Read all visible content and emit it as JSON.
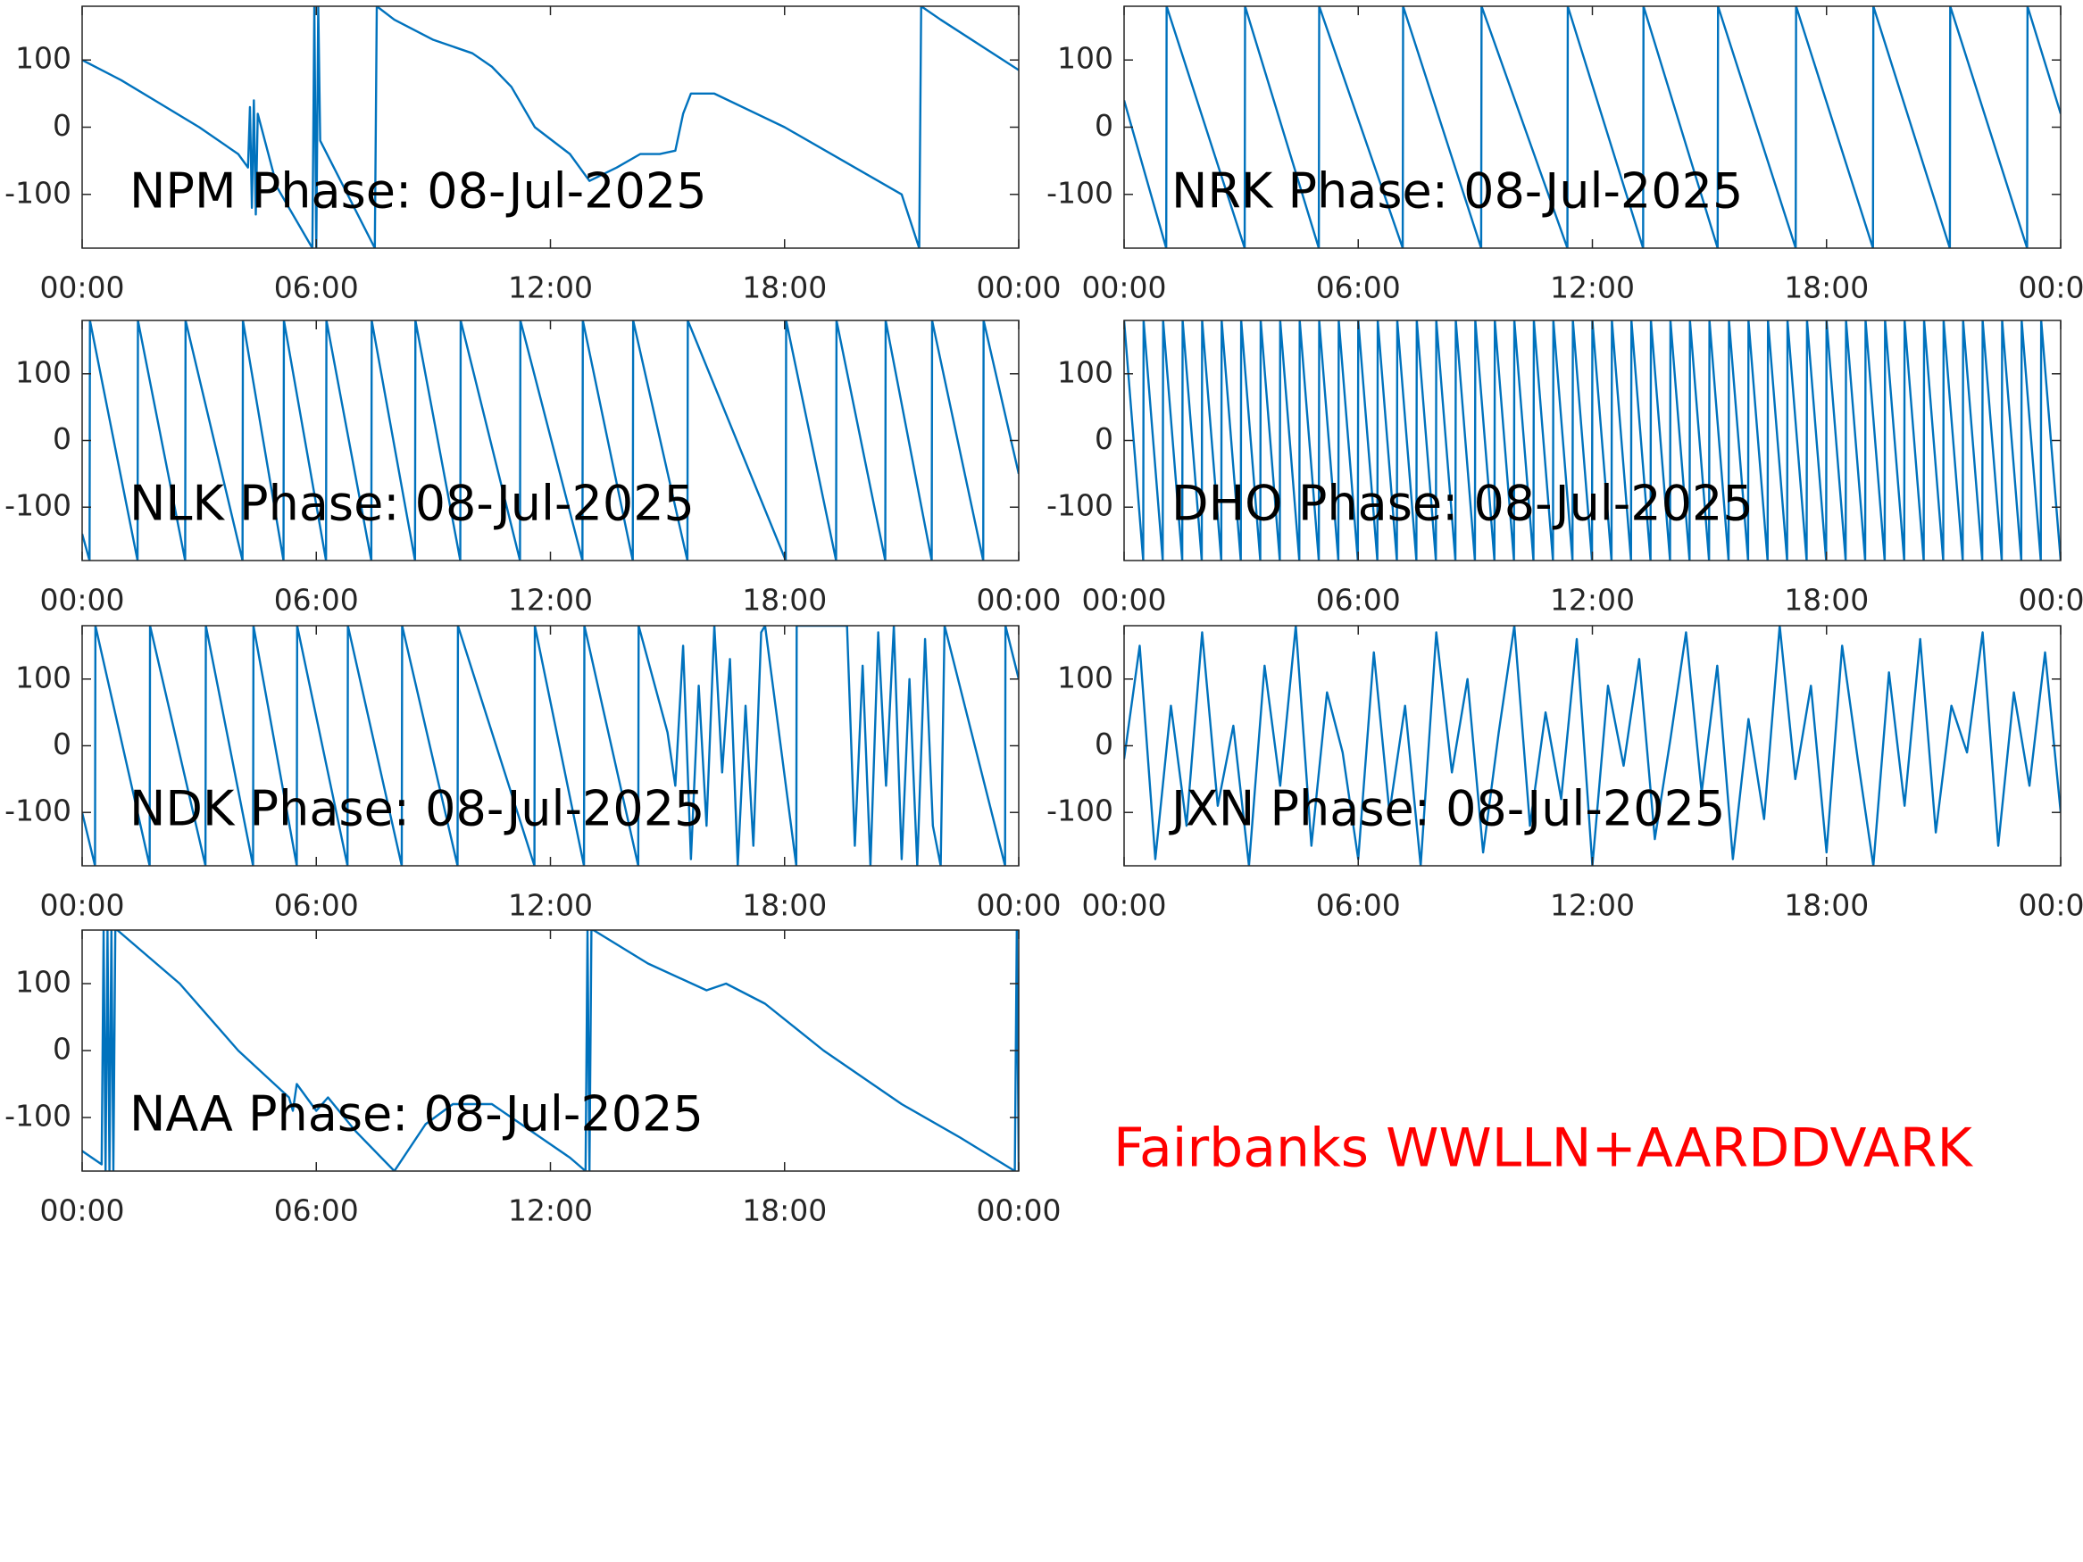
{
  "chart_data": [
    {
      "type": "line",
      "title": "NPM Phase: 08-Jul-2025",
      "x": [
        0,
        1,
        2,
        3,
        4,
        4.25,
        4.3,
        4.35,
        4.4,
        4.45,
        4.5,
        5,
        5.9,
        5.95,
        6.0,
        6.05,
        6.1,
        7.5,
        7.55,
        8,
        9,
        10,
        10.5,
        11,
        11.6,
        12.5,
        13,
        13.7,
        14.3,
        14.8,
        15.2,
        15.4,
        15.6,
        16.2,
        18,
        21,
        21.45,
        21.5,
        22,
        24
      ],
      "series": [
        {
          "color": "#0072bd",
          "values": [
            100,
            70,
            35,
            0,
            -40,
            -60,
            30,
            -120,
            40,
            -130,
            20,
            -90,
            -180,
            180,
            -180,
            180,
            -20,
            -180,
            180,
            160,
            130,
            110,
            90,
            60,
            0,
            -40,
            -80,
            -60,
            -40,
            -40,
            -35,
            20,
            50,
            50,
            0,
            -100,
            -180,
            180,
            160,
            85
          ]
        }
      ],
      "xlim": [
        0,
        24
      ],
      "ylim": [
        -180,
        180
      ],
      "xticks": [
        {
          "value": 0,
          "label": "00:00"
        },
        {
          "value": 6,
          "label": "06:00"
        },
        {
          "value": 12,
          "label": "12:00"
        },
        {
          "value": 18,
          "label": "18:00"
        },
        {
          "value": 24,
          "label": "00:00"
        }
      ],
      "yticks": [
        -100,
        0,
        100
      ]
    },
    {
      "type": "line",
      "title": "NRK Phase: 08-Jul-2025",
      "x": [
        0,
        1.08,
        1.09,
        3.09,
        3.1,
        4.99,
        5.0,
        7.14,
        7.15,
        9.15,
        9.16,
        11.36,
        11.37,
        13.3,
        13.31,
        15.21,
        15.22,
        17.21,
        17.22,
        19.19,
        19.2,
        21.16,
        21.17,
        23.14,
        23.15,
        24
      ],
      "series": [
        {
          "color": "#0072bd",
          "values": [
            40,
            -180,
            180,
            -180,
            180,
            -180,
            180,
            -180,
            180,
            -180,
            180,
            -180,
            180,
            -180,
            180,
            -180,
            180,
            -180,
            180,
            -180,
            180,
            -180,
            180,
            -180,
            180,
            20
          ]
        }
      ],
      "xlim": [
        0,
        24
      ],
      "ylim": [
        -180,
        180
      ],
      "xticks": [
        {
          "value": 0,
          "label": "00:00"
        },
        {
          "value": 6,
          "label": "06:00"
        },
        {
          "value": 12,
          "label": "12:00"
        },
        {
          "value": 18,
          "label": "18:00"
        },
        {
          "value": 24,
          "label": "00:00"
        }
      ],
      "yticks": [
        -100,
        0,
        100
      ]
    },
    {
      "type": "line",
      "title": "NLK Phase: 08-Jul-2025",
      "x": [
        0,
        0.19,
        0.2,
        1.42,
        1.43,
        2.64,
        2.65,
        4.11,
        4.12,
        5.16,
        5.17,
        6.25,
        6.26,
        7.41,
        7.42,
        8.53,
        8.54,
        9.69,
        9.7,
        11.22,
        11.23,
        12.82,
        12.83,
        14.11,
        14.12,
        15.51,
        15.52,
        18.03,
        18.04,
        19.32,
        19.33,
        20.58,
        20.59,
        21.77,
        21.78,
        23.09,
        23.1,
        24
      ],
      "series": [
        {
          "color": "#0072bd",
          "values": [
            -140,
            -180,
            180,
            -180,
            180,
            -180,
            180,
            -180,
            180,
            -180,
            180,
            -180,
            180,
            -180,
            180,
            -180,
            180,
            -180,
            180,
            -180,
            180,
            -180,
            180,
            -180,
            180,
            -180,
            180,
            -180,
            180,
            -180,
            180,
            -180,
            180,
            -180,
            180,
            -180,
            180,
            -50
          ]
        }
      ],
      "xlim": [
        0,
        24
      ],
      "ylim": [
        -180,
        180
      ],
      "xticks": [
        {
          "value": 0,
          "label": "00:00"
        },
        {
          "value": 6,
          "label": "06:00"
        },
        {
          "value": 12,
          "label": "12:00"
        },
        {
          "value": 18,
          "label": "18:00"
        },
        {
          "value": 24,
          "label": "00:00"
        }
      ],
      "yticks": [
        -100,
        0,
        100
      ]
    },
    {
      "type": "line",
      "title": "DHO Phase: 08-Jul-2025",
      "x": [
        0,
        0.49,
        0.5,
        0.99,
        1,
        1.49,
        1.5,
        1.99,
        2,
        2.49,
        2.5,
        2.99,
        3,
        3.49,
        3.5,
        3.99,
        4,
        4.49,
        4.5,
        4.99,
        5,
        5.49,
        5.5,
        5.99,
        6,
        6.49,
        6.5,
        6.99,
        7,
        7.49,
        7.5,
        7.99,
        8,
        8.49,
        8.5,
        8.99,
        9,
        9.49,
        9.5,
        9.99,
        10,
        10.49,
        10.5,
        10.99,
        11,
        11.49,
        11.5,
        11.99,
        12,
        12.49,
        12.5,
        12.99,
        13,
        13.49,
        13.5,
        13.99,
        14,
        14.49,
        14.5,
        14.99,
        15,
        15.49,
        15.5,
        15.99,
        16,
        16.49,
        16.5,
        16.99,
        17,
        17.49,
        17.5,
        17.99,
        18,
        18.49,
        18.5,
        18.99,
        19,
        19.49,
        19.5,
        19.99,
        20,
        20.49,
        20.5,
        20.99,
        21,
        21.49,
        21.5,
        21.99,
        22,
        22.49,
        22.5,
        22.99,
        23,
        23.49,
        23.5,
        24
      ],
      "series": [
        {
          "color": "#0072bd",
          "values": [
            180,
            -180,
            180,
            -180,
            180,
            -180,
            180,
            -180,
            180,
            -180,
            180,
            -180,
            180,
            -180,
            180,
            -180,
            180,
            -180,
            180,
            -180,
            180,
            -180,
            180,
            -180,
            180,
            -180,
            180,
            -180,
            180,
            -180,
            180,
            -180,
            180,
            -180,
            180,
            -180,
            180,
            -180,
            180,
            -180,
            180,
            -180,
            180,
            -180,
            180,
            -180,
            180,
            -180,
            180,
            -180,
            180,
            -180,
            180,
            -180,
            180,
            -180,
            180,
            -180,
            180,
            -180,
            180,
            -180,
            180,
            -180,
            180,
            -180,
            180,
            -180,
            180,
            -180,
            180,
            -180,
            180,
            -180,
            180,
            -180,
            180,
            -180,
            180,
            -180,
            180,
            -180,
            180,
            -180,
            180,
            -180,
            180,
            -180,
            180,
            -180,
            180,
            -180,
            180,
            -180,
            180,
            -180
          ]
        }
      ],
      "xlim": [
        0,
        24
      ],
      "ylim": [
        -180,
        180
      ],
      "xticks": [
        {
          "value": 0,
          "label": "00:00"
        },
        {
          "value": 6,
          "label": "06:00"
        },
        {
          "value": 12,
          "label": "12:00"
        },
        {
          "value": 18,
          "label": "18:00"
        },
        {
          "value": 24,
          "label": "00:00"
        }
      ],
      "yticks": [
        -100,
        0,
        100
      ]
    },
    {
      "type": "line",
      "title": "NDK Phase: 08-Jul-2025",
      "x": [
        0,
        0.33,
        0.34,
        1.73,
        1.74,
        3.16,
        3.17,
        4.38,
        4.39,
        5.5,
        5.51,
        6.8,
        6.81,
        8.19,
        8.2,
        9.62,
        9.63,
        11.59,
        11.6,
        12.86,
        12.87,
        14.25,
        14.26,
        15.0,
        15.2,
        15.4,
        15.6,
        15.8,
        16.0,
        16.2,
        16.4,
        16.6,
        16.8,
        17.0,
        17.2,
        17.4,
        17.5,
        18.3,
        18.31,
        19.6,
        19.8,
        20.0,
        20.2,
        20.4,
        20.6,
        20.8,
        21.0,
        21.2,
        21.4,
        21.6,
        21.8,
        22.0,
        22.1,
        23.65,
        23.66,
        24
      ],
      "series": [
        {
          "color": "#0072bd",
          "values": [
            -100,
            -180,
            180,
            -180,
            180,
            -180,
            180,
            -180,
            180,
            -180,
            180,
            -180,
            180,
            -180,
            180,
            -180,
            180,
            -180,
            180,
            -180,
            180,
            -180,
            180,
            20,
            -60,
            150,
            -170,
            90,
            -120,
            180,
            -40,
            130,
            -180,
            60,
            -150,
            170,
            180,
            -180,
            180,
            180,
            -150,
            120,
            -180,
            170,
            -60,
            180,
            -170,
            100,
            -180,
            160,
            -120,
            -180,
            180,
            -180,
            180,
            100
          ]
        }
      ],
      "xlim": [
        0,
        24
      ],
      "ylim": [
        -180,
        180
      ],
      "xticks": [
        {
          "value": 0,
          "label": "00:00"
        },
        {
          "value": 6,
          "label": "06:00"
        },
        {
          "value": 12,
          "label": "12:00"
        },
        {
          "value": 18,
          "label": "18:00"
        },
        {
          "value": 24,
          "label": "00:00"
        }
      ],
      "yticks": [
        -100,
        0,
        100
      ]
    },
    {
      "type": "line",
      "title": "JXN Phase: 08-Jul-2025",
      "x": [
        0,
        0.4,
        0.8,
        1.2,
        1.6,
        2,
        2.4,
        2.8,
        3.2,
        3.6,
        4,
        4.4,
        4.8,
        5.2,
        5.6,
        6,
        6.4,
        6.8,
        7.2,
        7.6,
        8,
        8.4,
        8.8,
        9.2,
        9.6,
        10,
        10.4,
        10.8,
        11.2,
        11.6,
        12,
        12.4,
        12.8,
        13.2,
        13.6,
        14,
        14.4,
        14.8,
        15.2,
        15.6,
        16,
        16.4,
        16.8,
        17.2,
        17.6,
        18,
        18.4,
        18.8,
        19.2,
        19.6,
        20,
        20.4,
        20.8,
        21.2,
        21.6,
        22,
        22.4,
        22.8,
        23.2,
        23.6,
        24
      ],
      "series": [
        {
          "color": "#0072bd",
          "values": [
            -20,
            150,
            -170,
            60,
            -120,
            170,
            -90,
            30,
            -180,
            120,
            -60,
            180,
            -150,
            80,
            -10,
            -170,
            140,
            -100,
            60,
            -180,
            170,
            -40,
            100,
            -160,
            20,
            180,
            -120,
            50,
            -80,
            160,
            -180,
            90,
            -30,
            130,
            -140,
            10,
            170,
            -70,
            120,
            -170,
            40,
            -110,
            180,
            -50,
            90,
            -160,
            150,
            -20,
            -180,
            110,
            -90,
            160,
            -130,
            60,
            -10,
            170,
            -150,
            80,
            -60,
            140,
            -100
          ]
        }
      ],
      "xlim": [
        0,
        24
      ],
      "ylim": [
        -180,
        180
      ],
      "xticks": [
        {
          "value": 0,
          "label": "00:00"
        },
        {
          "value": 6,
          "label": "06:00"
        },
        {
          "value": 12,
          "label": "12:00"
        },
        {
          "value": 18,
          "label": "18:00"
        },
        {
          "value": 24,
          "label": "00:00"
        }
      ],
      "yticks": [
        -100,
        0,
        100
      ]
    },
    {
      "type": "line",
      "title": "NAA Phase: 08-Jul-2025",
      "x": [
        0,
        0.5,
        0.55,
        0.6,
        0.65,
        0.7,
        0.75,
        0.8,
        0.85,
        0.9,
        2.5,
        4,
        5.3,
        5.4,
        5.5,
        6,
        6.3,
        7,
        8,
        8.8,
        9.5,
        10.5,
        11.5,
        12.5,
        12.9,
        12.95,
        13.0,
        13.05,
        13.1,
        14.5,
        16,
        16.5,
        17.5,
        19,
        21,
        22.5,
        23.9,
        23.95,
        24
      ],
      "series": [
        {
          "color": "#0072bd",
          "values": [
            -150,
            -170,
            180,
            -180,
            180,
            -180,
            180,
            -180,
            180,
            180,
            100,
            0,
            -70,
            -90,
            -50,
            -90,
            -70,
            -120,
            -180,
            -110,
            -80,
            -80,
            -120,
            -160,
            -180,
            180,
            -180,
            180,
            180,
            130,
            90,
            100,
            70,
            0,
            -80,
            -130,
            -180,
            180,
            -180
          ]
        }
      ],
      "xlim": [
        0,
        24
      ],
      "ylim": [
        -180,
        180
      ],
      "xticks": [
        {
          "value": 0,
          "label": "00:00"
        },
        {
          "value": 6,
          "label": "06:00"
        },
        {
          "value": 12,
          "label": "12:00"
        },
        {
          "value": 18,
          "label": "18:00"
        },
        {
          "value": 24,
          "label": "00:00"
        }
      ],
      "yticks": [
        -100,
        0,
        100
      ]
    }
  ],
  "annotation": {
    "text": "Fairbanks WWLLN+AARDDVARK",
    "color": "#ff0000"
  }
}
